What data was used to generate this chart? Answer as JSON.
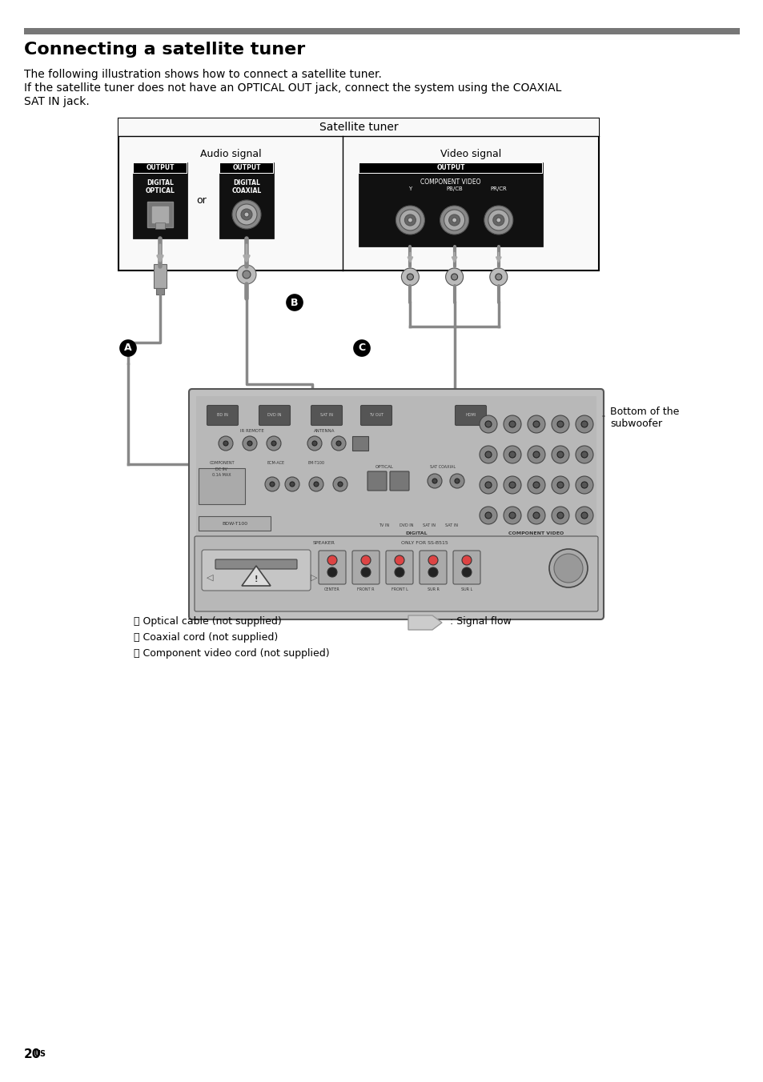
{
  "title": "Connecting a satellite tuner",
  "title_bar_color": "#777777",
  "body_text_line1": "The following illustration shows how to connect a satellite tuner.",
  "body_text_line2": "If the satellite tuner does not have an OPTICAL OUT jack, connect the system using the COAXIAL",
  "body_text_line3": "SAT IN jack.",
  "diagram_box_label": "Satellite tuner",
  "audio_label": "Audio signal",
  "video_label": "Video signal",
  "or_text": "or",
  "bottom_label": "Bottom of the\nsubwoofer",
  "legend_a": "Ⓐ Optical cable (not supplied)",
  "legend_b": "Ⓑ Coaxial cord (not supplied)",
  "legend_c": "Ⓒ Component video cord (not supplied)",
  "signal_flow": ": Signal flow",
  "page_number": "20",
  "page_suffix": "US",
  "bg_color": "#ffffff",
  "text_color": "#000000",
  "gray_bar_color": "#777777",
  "box_border": "#000000",
  "subwoofer_color": "#c8c8c8",
  "connector_gray": "#aaaaaa",
  "dark_connector": "#333333",
  "cable_gray": "#999999",
  "light_gray": "#e0e0e0"
}
